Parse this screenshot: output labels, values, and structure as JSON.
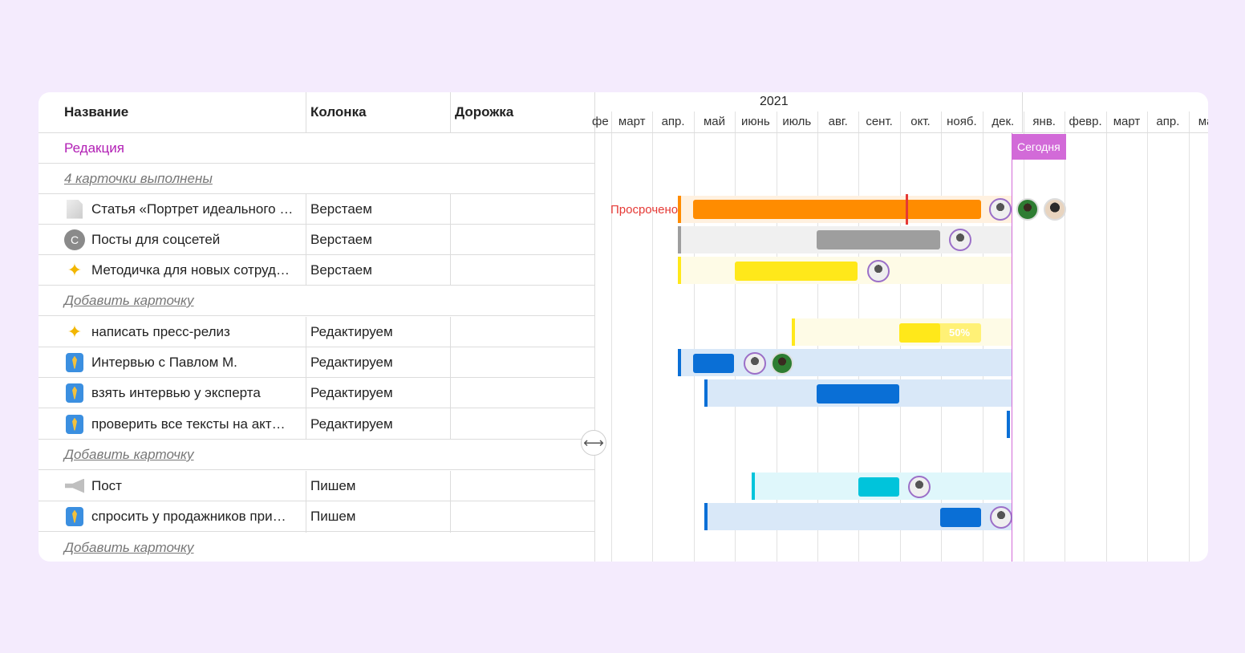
{
  "table": {
    "headers": {
      "name": "Название",
      "column": "Колонка",
      "track": "Дорожка"
    },
    "group": "Редакция",
    "done_link": "4 карточки выполнены",
    "add_card": "Добавить карточку",
    "rows": [
      {
        "title": "Статья «Портрет идеального …",
        "column": "Верстаем",
        "icon": "document-icon"
      },
      {
        "title": "Посты для соцсетей",
        "column": "Верстаем",
        "icon": "letter-c-avatar-icon",
        "icon_letter": "C"
      },
      {
        "title": "Методичка для новых сотруд…",
        "column": "Верстаем",
        "icon": "dizzy-star-icon"
      },
      {
        "title": "написать пресс-релиз",
        "column": "Редактируем",
        "icon": "dizzy-star-icon"
      },
      {
        "title": "Интервью с Павлом М.",
        "column": "Редактируем",
        "icon": "necktie-icon"
      },
      {
        "title": "взять интервью у эксперта",
        "column": "Редактируем",
        "icon": "necktie-icon"
      },
      {
        "title": "проверить все тексты на акт…",
        "column": "Редактируем",
        "icon": "necktie-icon"
      },
      {
        "title": "Пост",
        "column": "Пишем",
        "icon": "megaphone-icon"
      },
      {
        "title": "спросить у продажников при…",
        "column": "Пишем",
        "icon": "necktie-icon"
      }
    ]
  },
  "gantt": {
    "year": "2021",
    "months": [
      "февр.",
      "март",
      "апр.",
      "май",
      "июнь",
      "июль",
      "авг.",
      "сент.",
      "окт.",
      "нояб.",
      "дек.",
      "янв.",
      "февр.",
      "март",
      "апр.",
      "май"
    ],
    "today_label": "Сегодня",
    "overdue_label": "Просрочено",
    "progress_label": "50%",
    "colors": {
      "orange": "#ff8c00",
      "gray": "#9e9e9e",
      "yellow": "#ffe81a",
      "blue": "#0a6fd6",
      "cyan": "#00c4db",
      "today": "#d26ad8",
      "overdue": "#e53935"
    }
  }
}
